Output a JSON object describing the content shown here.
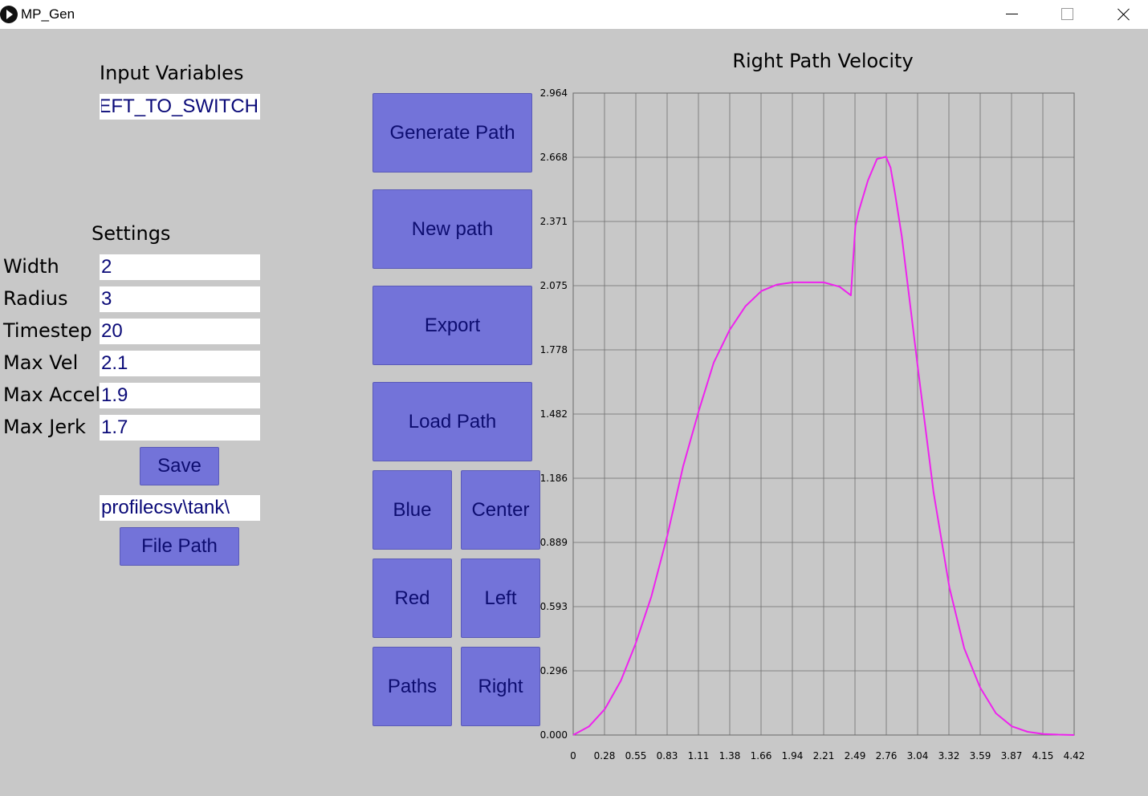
{
  "window": {
    "title": "MP_Gen"
  },
  "input_section": {
    "heading": "Input Variables",
    "name_value": "LEFT_TO_SWITCH"
  },
  "settings": {
    "heading": "Settings",
    "fields": [
      {
        "label": "Width",
        "value": "2"
      },
      {
        "label": "Radius",
        "value": "3"
      },
      {
        "label": "Timestep",
        "value": "20"
      },
      {
        "label": "Max Vel",
        "value": "2.1"
      },
      {
        "label": "Max Accel",
        "value": "1.9"
      },
      {
        "label": "Max Jerk",
        "value": "1.7"
      }
    ],
    "save_label": "Save",
    "file_path_value": "profilecsv\\tank\\",
    "file_path_label": "File Path"
  },
  "buttons": {
    "generate": "Generate Path",
    "new_path": "New path",
    "export": "Export",
    "load": "Load Path",
    "blue": "Blue",
    "center": "Center",
    "red": "Red",
    "left": "Left",
    "paths": "Paths",
    "right": "Right"
  },
  "colors": {
    "background": "#c8c8c8",
    "button": "#7373d9",
    "button_text": "#0d0d70",
    "field_text": "#0a0a78",
    "series": "#ee22ee"
  },
  "chart_data": {
    "type": "line",
    "title": "Right Path Velocity",
    "xlabel": "",
    "ylabel": "",
    "x_ticks": [
      "0",
      "0.28",
      "0.55",
      "0.83",
      "1.11",
      "1.38",
      "1.66",
      "1.94",
      "2.21",
      "2.49",
      "2.76",
      "3.04",
      "3.32",
      "3.59",
      "3.87",
      "4.15",
      "4.42"
    ],
    "y_ticks": [
      "0.000",
      "0.296",
      "0.593",
      "0.889",
      "1.186",
      "1.482",
      "1.778",
      "2.075",
      "2.371",
      "2.668",
      "2.964"
    ],
    "xlim": [
      0,
      4.42
    ],
    "ylim": [
      0,
      2.964
    ],
    "grid": true,
    "series": [
      {
        "color": "#ee22ee",
        "x": [
          0,
          0.14,
          0.28,
          0.42,
          0.55,
          0.69,
          0.83,
          0.97,
          1.11,
          1.24,
          1.38,
          1.52,
          1.66,
          1.8,
          1.94,
          2.08,
          2.21,
          2.35,
          2.45,
          2.49,
          2.52,
          2.6,
          2.68,
          2.76,
          2.8,
          2.84,
          2.9,
          3.04,
          3.18,
          3.32,
          3.45,
          3.59,
          3.73,
          3.87,
          4.01,
          4.15,
          4.28,
          4.35,
          4.42
        ],
        "y": [
          0,
          0.04,
          0.12,
          0.25,
          0.42,
          0.64,
          0.92,
          1.24,
          1.5,
          1.72,
          1.87,
          1.98,
          2.05,
          2.08,
          2.09,
          2.09,
          2.09,
          2.07,
          2.03,
          2.35,
          2.42,
          2.56,
          2.66,
          2.67,
          2.62,
          2.5,
          2.3,
          1.7,
          1.12,
          0.68,
          0.4,
          0.22,
          0.1,
          0.04,
          0.015,
          0.005,
          0.002,
          0.001,
          0
        ]
      }
    ]
  }
}
